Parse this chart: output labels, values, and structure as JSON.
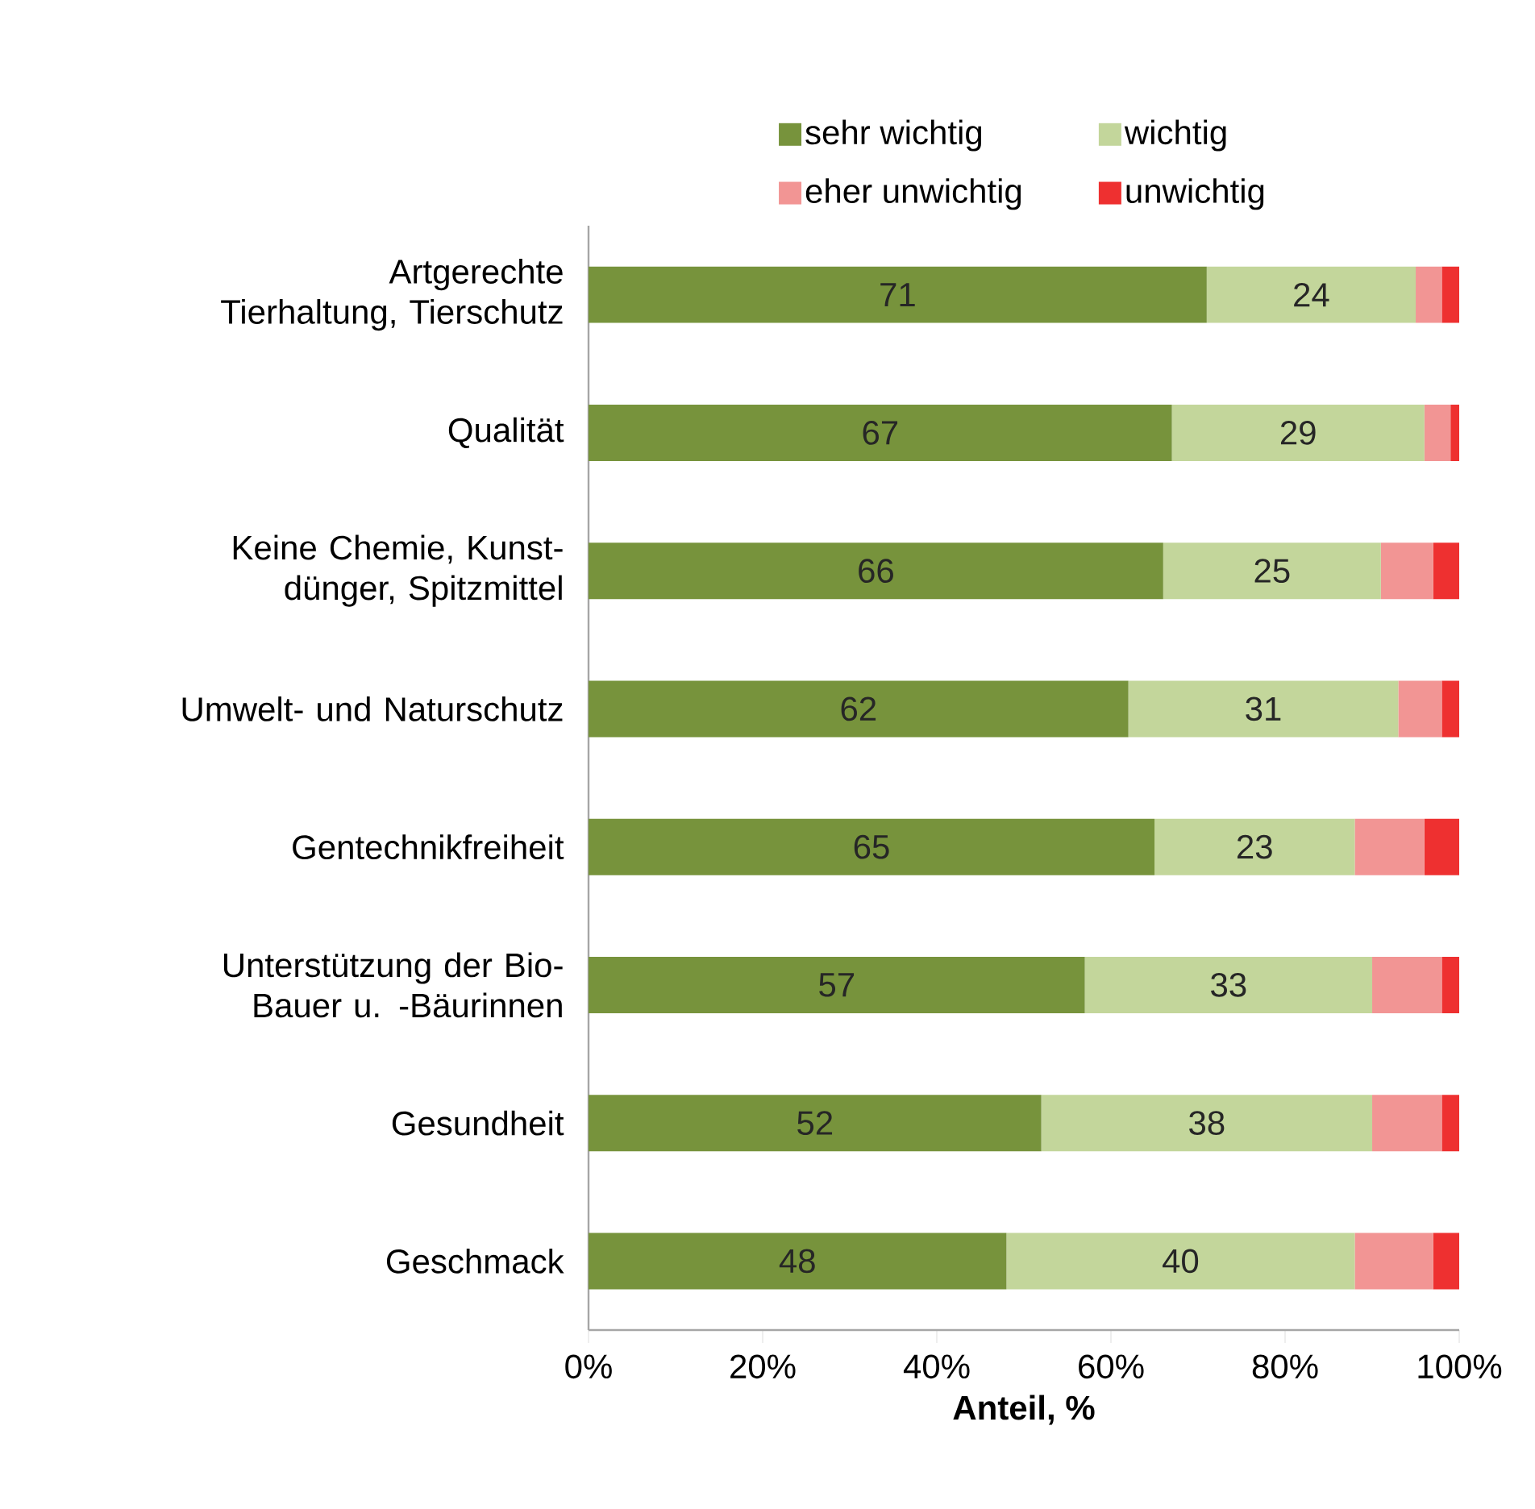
{
  "chart_data": {
    "type": "bar",
    "orientation": "horizontal",
    "stacked": true,
    "xlabel": "**Anteil, %**",
    "categories": [
      "Artgerechte Tierhaltung, Tierschutz",
      "Qualität",
      "Keine Chemie, Kunst-dünger, Spitzmittel",
      "Umwelt- und Naturschutz",
      "Gentechnikfreiheit",
      "Unterstützung der Bio-Bauer u. -Bäurinnen",
      "Gesundheit",
      "Geschmack"
    ],
    "series": [
      {
        "name": "sehr wichtig",
        "color": "#77933c",
        "values": [
          71,
          67,
          66,
          62,
          65,
          57,
          52,
          48
        ],
        "value_labels": [
          "71",
          "67",
          "66",
          "62",
          "65",
          "57",
          "52",
          "48"
        ]
      },
      {
        "name": "wichtig",
        "color": "#c3d69b",
        "values": [
          24,
          29,
          25,
          31,
          23,
          33,
          38,
          40
        ],
        "value_labels": [
          "24",
          "29",
          "25",
          "31",
          "23",
          "33",
          "38",
          "40"
        ]
      },
      {
        "name": "eher unwichtig",
        "color": "#f29594",
        "values": [
          3,
          3,
          6,
          5,
          8,
          8,
          8,
          9
        ]
      },
      {
        "name": "unwichtig",
        "color": "#ee3030",
        "values": [
          2,
          1,
          3,
          2,
          4,
          2,
          2,
          3
        ]
      }
    ],
    "xlim": [
      0,
      100
    ],
    "xticks": [
      {
        "value": 0,
        "label": "0%"
      },
      {
        "value": 20,
        "label": "20%"
      },
      {
        "value": 40,
        "label": "40%"
      },
      {
        "value": 60,
        "label": "60%"
      },
      {
        "value": 80,
        "label": "80%"
      },
      {
        "value": 100,
        "label": "100%"
      }
    ],
    "grid": false,
    "legend": "top"
  }
}
